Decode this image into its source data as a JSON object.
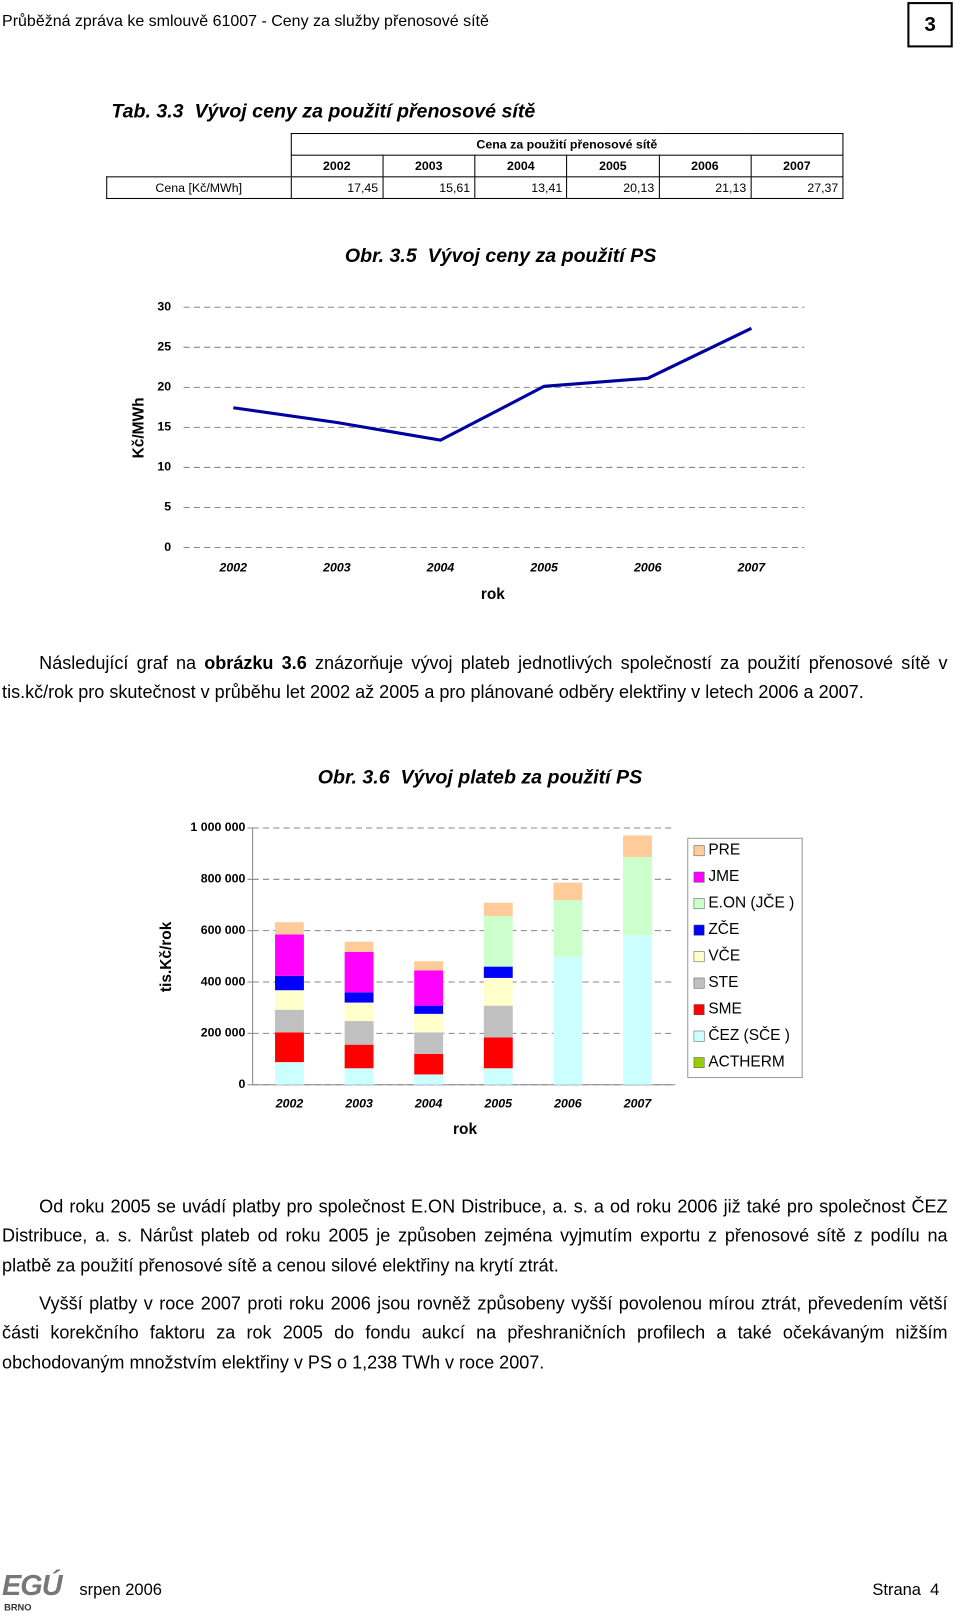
{
  "header": {
    "title": "Průběžná zpráva ke smlouvě 61007 - Ceny za služby přenosové sítě",
    "chapter": "3"
  },
  "table": {
    "caption": "Tab. 3.3  Vývoj ceny za použití přenosové sítě",
    "group_header": "Cena za použití přenosové sítě",
    "columns": [
      "2002",
      "2003",
      "2004",
      "2005",
      "2006",
      "2007"
    ],
    "rows": [
      {
        "label": "Cena [Kč/MWh]",
        "cells": [
          "17,45",
          "15,61",
          "13,41",
          "20,13",
          "21,13",
          "27,37"
        ]
      }
    ]
  },
  "chart_data": [
    {
      "type": "line",
      "title": "Obr. 3.5  Vývoj ceny za použití PS",
      "y_label": "Kč/MWh",
      "x_label": "rok",
      "categories": [
        "2002",
        "2003",
        "2004",
        "2005",
        "2006",
        "2007"
      ],
      "values": [
        17.45,
        15.61,
        13.41,
        20.13,
        21.13,
        27.37
      ],
      "color": "#0000a0",
      "ylim": [
        0,
        30
      ],
      "yticks": [
        0,
        5,
        10,
        15,
        20,
        25,
        30
      ],
      "grid": true
    },
    {
      "type": "stacked_bar",
      "title": "Obr. 3.6  Vývoj plateb za použití PS",
      "y_label": "tis.Kč/rok",
      "x_label": "rok",
      "categories": [
        "2002",
        "2003",
        "2004",
        "2005",
        "2006",
        "2007"
      ],
      "series": [
        {
          "name": "ACTHERM",
          "color": "#99cc00",
          "values": [
            0,
            0,
            0,
            0,
            0,
            0
          ]
        },
        {
          "name": "ČEZ (SČE )",
          "color": "#ccffff",
          "values": [
            88000,
            64000,
            40000,
            64000,
            498000,
            582000
          ]
        },
        {
          "name": "SME",
          "color": "#ff0000",
          "values": [
            116000,
            92000,
            80000,
            120000,
            0,
            0
          ]
        },
        {
          "name": "STE",
          "color": "#c0c0c0",
          "values": [
            88000,
            92000,
            84000,
            124000,
            0,
            0
          ]
        },
        {
          "name": "VČE",
          "color": "#ffffcc",
          "values": [
            76000,
            72000,
            72000,
            108000,
            0,
            0
          ]
        },
        {
          "name": "ZČE",
          "color": "#0000ff",
          "values": [
            56000,
            40000,
            32000,
            44000,
            0,
            0
          ]
        },
        {
          "name": "E.ON (JČE )",
          "color": "#ccffcc",
          "values": [
            0,
            0,
            0,
            197000,
            221000,
            305000
          ]
        },
        {
          "name": "JME",
          "color": "#ff00ff",
          "values": [
            161000,
            157000,
            137000,
            0,
            0,
            0
          ]
        },
        {
          "name": "PRE",
          "color": "#ffcc99",
          "values": [
            48000,
            40000,
            36000,
            52000,
            68000,
            84000
          ]
        }
      ],
      "ylim": [
        0,
        1000000
      ],
      "yticks": [
        0,
        {
          "value": 200000,
          "label": "200 000"
        },
        {
          "value": 400000,
          "label": "400 000"
        },
        {
          "value": 600000,
          "label": "600 000"
        },
        {
          "value": 800000,
          "label": "800 000"
        },
        {
          "value": 1000000,
          "label": "1 000 000"
        }
      ],
      "grid": true,
      "legend": "right"
    }
  ],
  "paragraphs": [
    [
      "Následující graf na ",
      "obrázku 3.6",
      " znázorňuje vývoj plateb jednotlivých společností za použití přenosové sítě v tis.kč/rok pro skutečnost v průběhu let 2002 až 2005 a pro plánované odběry elektřiny v letech 2006 a 2007."
    ],
    [
      "Od roku 2005 se uvádí platby pro společnost E.ON Distribuce, a. s. a od roku 2006 již také pro společnost ČEZ Distribuce, a. s. Nárůst plateb od roku 2005 je způsoben zejména vyjmutím exportu z přenosové sítě z podílu na platbě za použití přenosové sítě a cenou silové elektřiny na krytí ztrát."
    ],
    [
      "Vyšší platby v roce 2007 proti roku 2006 jsou rovněž způsobeny vyšší povolenou mírou ztrát, převedením větší části korekčního faktoru za rok 2005 do fondu aukcí na přeshraničních profilech a také očekávaným nižším obchodovaným  množstvím elektřiny v PS o 1,238 TWh v roce 2007."
    ]
  ],
  "footer": {
    "logo": "EGÚ",
    "logo_sub": "BRNO",
    "date": "srpen 2006",
    "page": "Strana  4"
  }
}
